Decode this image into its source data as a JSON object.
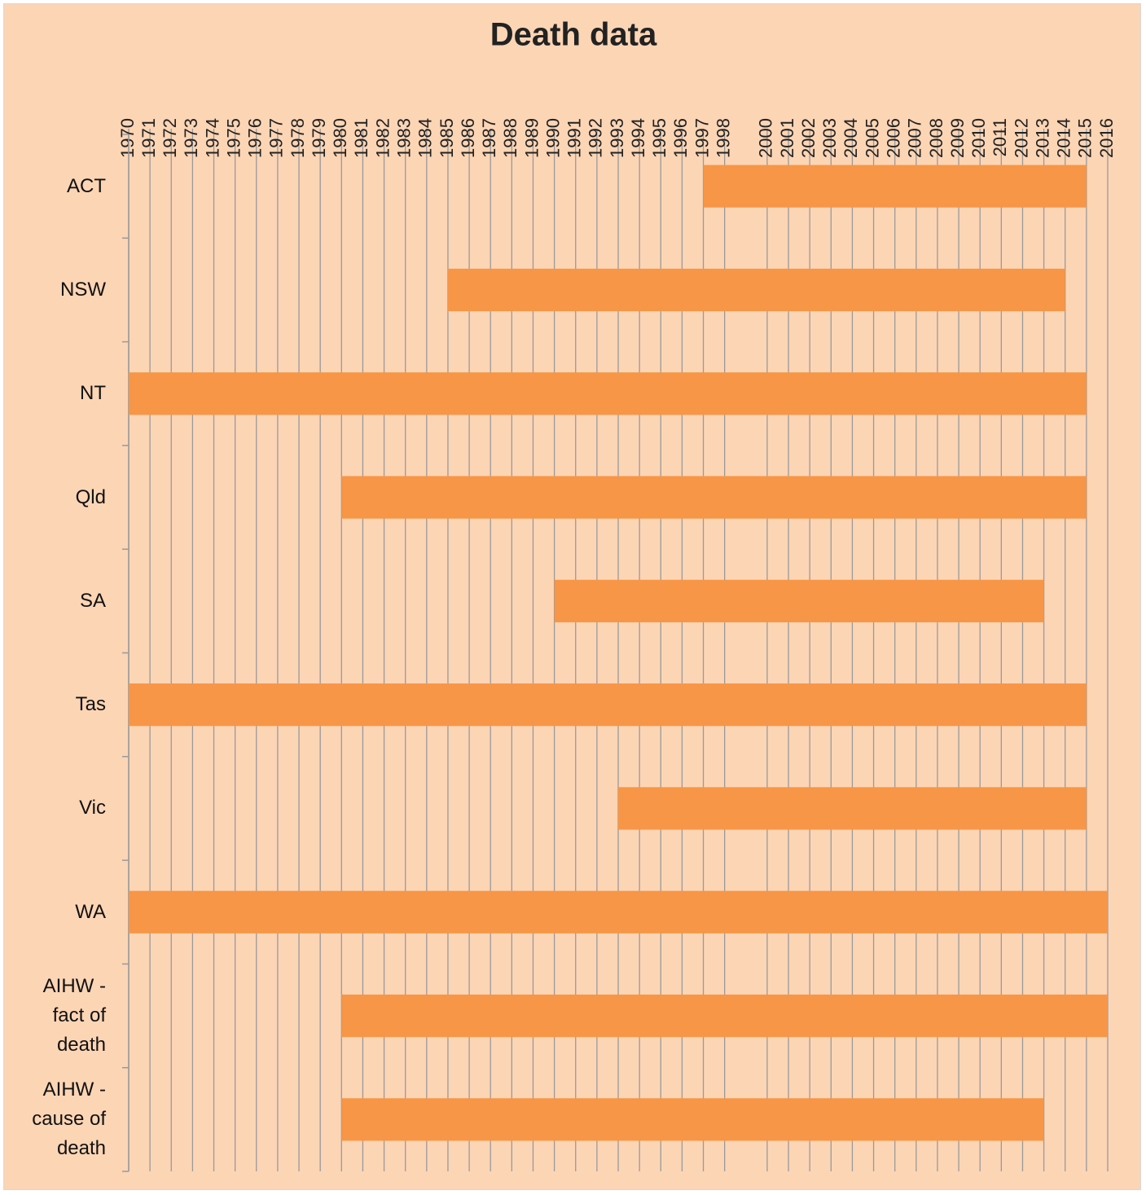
{
  "chart_data": {
    "type": "floating-bar",
    "orientation": "horizontal",
    "title": "Death data",
    "categories": [
      "ACT",
      "NSW",
      "NT",
      "Qld",
      "SA",
      "Tas",
      "Vic",
      "WA",
      "AIHW - fact of death",
      "AIHW - cause of death"
    ],
    "start": [
      1997,
      1985,
      1970,
      1980,
      1990,
      1970,
      1993,
      1970,
      1980,
      1980
    ],
    "end": [
      2015,
      2014,
      2015,
      2015,
      2013,
      2015,
      2015,
      2016,
      2016,
      2013
    ],
    "color": "#f79646",
    "xlim": [
      1970,
      2016
    ],
    "xticks": [
      1970,
      1971,
      1972,
      1973,
      1974,
      1975,
      1976,
      1977,
      1978,
      1979,
      1980,
      1981,
      1982,
      1983,
      1984,
      1985,
      1986,
      1987,
      1988,
      1989,
      1990,
      1991,
      1992,
      1993,
      1994,
      1995,
      1996,
      1997,
      1998,
      2000,
      2001,
      2002,
      2003,
      2004,
      2005,
      2006,
      2007,
      2008,
      2009,
      2010,
      2011,
      2012,
      2013,
      2014,
      2015,
      2016
    ],
    "grid": true
  }
}
